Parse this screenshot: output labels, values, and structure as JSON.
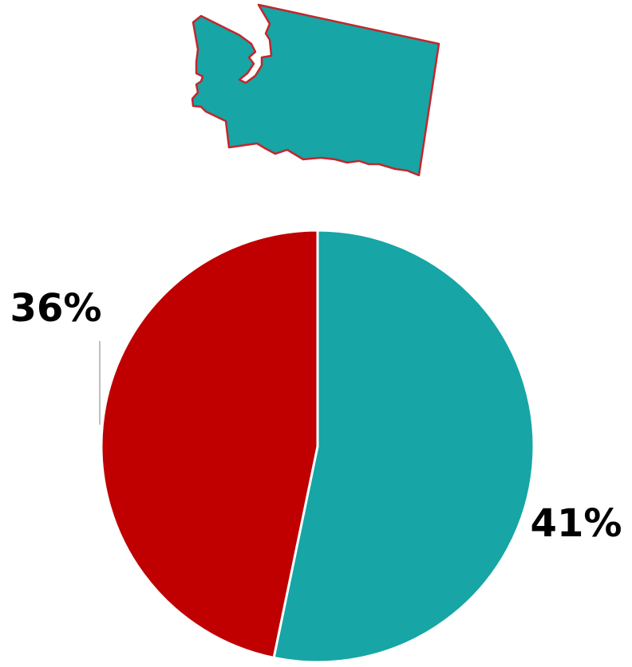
{
  "chart_data": {
    "type": "pie",
    "values": [
      41,
      36
    ],
    "value_labels": [
      "41%",
      "36%"
    ],
    "colors": [
      "#17a5a5",
      "#c00000"
    ]
  }
}
